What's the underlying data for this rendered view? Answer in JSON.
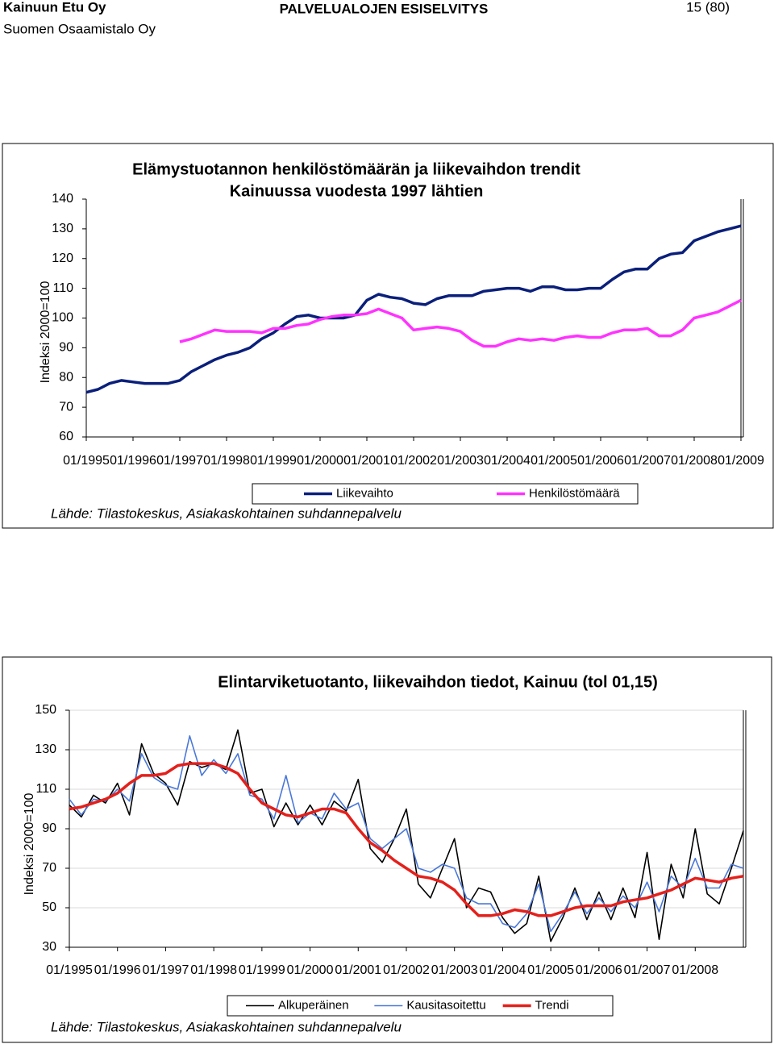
{
  "header": {
    "company": "Kainuun Etu Oy",
    "subtitle": "Suomen Osaamistalo Oy",
    "title": "PALVELUALOJEN ESISELVITYS",
    "page": "15 (80)"
  },
  "chart_data": [
    {
      "type": "line",
      "title": "Elämystuotannon henkilöstömäärän ja liikevaihdon trendit",
      "subtitle": "Kainuussa vuodesta 1997 lähtien",
      "y_label": "Indeksi 2000=100",
      "source": "Lähde: Tilastokeskus, Asiakaskohtainen suhdannepalvelu",
      "categories": [
        "01/1995",
        null,
        null,
        null,
        "01/1996",
        null,
        null,
        null,
        "01/1997",
        null,
        null,
        null,
        "01/1998",
        null,
        null,
        null,
        "01/1999",
        null,
        null,
        null,
        "01/2000",
        null,
        null,
        null,
        "01/2001",
        null,
        null,
        null,
        "01/2002",
        null,
        null,
        null,
        "01/2003",
        null,
        null,
        null,
        "01/2004",
        null,
        null,
        null,
        "01/2005",
        null,
        null,
        null,
        "01/2006",
        null,
        null,
        null,
        "01/2007",
        null,
        null,
        null,
        "01/2008",
        null,
        null,
        null,
        "01/2009"
      ],
      "ylim": [
        60,
        140
      ],
      "yticks": [
        60,
        70,
        80,
        90,
        100,
        110,
        120,
        130,
        140
      ],
      "grid": false,
      "series": [
        {
          "name": "Liikevaihto",
          "color": "#0a1f7a",
          "values": [
            75,
            76,
            78,
            79,
            78.5,
            78,
            78,
            78,
            79,
            82,
            84,
            86,
            87.5,
            88.5,
            90,
            93,
            95,
            98,
            100.5,
            101,
            100,
            100,
            100,
            101,
            106,
            108,
            107,
            106.5,
            105,
            104.5,
            106.5,
            107.5,
            107.5,
            107.5,
            109,
            109.5,
            110,
            110,
            109,
            110.5,
            110.5,
            109.5,
            109.5,
            110,
            110,
            113,
            115.5,
            116.5,
            116.5,
            120,
            121.5,
            122,
            126,
            127.5,
            129,
            130,
            131
          ]
        },
        {
          "name": "Henkilöstömäärä",
          "color": "#ff33ff",
          "values": [
            null,
            null,
            null,
            null,
            null,
            null,
            null,
            null,
            92,
            93,
            94.5,
            96,
            95.5,
            95.5,
            95.5,
            95,
            96.5,
            96.5,
            97.5,
            98,
            99.5,
            100.5,
            101,
            101,
            101.5,
            103,
            101.5,
            100,
            96,
            96.5,
            97,
            96.5,
            95.5,
            92.5,
            90.5,
            90.5,
            92,
            93,
            92.5,
            93,
            92.5,
            93.5,
            94,
            93.5,
            93.5,
            95,
            96,
            96,
            96.5,
            94,
            94,
            96,
            100,
            101,
            102,
            104,
            106
          ]
        }
      ]
    },
    {
      "type": "line",
      "title": "Elintarviketuotanto, liikevaihdon tiedot, Kainuu (tol 01,15)",
      "y_label": "Indeksi 2000=100",
      "source": "Lähde: Tilastokeskus, Asiakaskohtainen suhdannepalvelu",
      "categories": [
        "01/1995",
        null,
        null,
        null,
        "01/1996",
        null,
        null,
        null,
        "01/1997",
        null,
        null,
        null,
        "01/1998",
        null,
        null,
        null,
        "01/1999",
        null,
        null,
        null,
        "01/2000",
        null,
        null,
        null,
        "01/2001",
        null,
        null,
        null,
        "01/2002",
        null,
        null,
        null,
        "01/2003",
        null,
        null,
        null,
        "01/2004",
        null,
        null,
        null,
        "01/2005",
        null,
        null,
        null,
        "01/2006",
        null,
        null,
        null,
        "01/2007",
        null,
        null,
        null,
        "01/2008",
        null,
        null,
        null,
        null
      ],
      "ylim": [
        30,
        150
      ],
      "yticks": [
        30,
        50,
        70,
        90,
        110,
        130,
        150
      ],
      "grid": true,
      "series": [
        {
          "name": "Alkuperäinen",
          "color": "#000000",
          "values": [
            102,
            96,
            107,
            103,
            113,
            97,
            133,
            118,
            113,
            102,
            124,
            121,
            123,
            120,
            140,
            108,
            110,
            91,
            103,
            92,
            102,
            92,
            104,
            99,
            115,
            80,
            73,
            85,
            100,
            62,
            55,
            70,
            85,
            50,
            60,
            58,
            45,
            37,
            42,
            66,
            33,
            45,
            60,
            44,
            58,
            44,
            60,
            45,
            78,
            34,
            72,
            55,
            90,
            57,
            52,
            70,
            89
          ]
        },
        {
          "name": "Kausitasoitettu",
          "color": "#4a78d8",
          "values": [
            105,
            97,
            105,
            104,
            110,
            104,
            128,
            116,
            112,
            110,
            137,
            117,
            125,
            118,
            128,
            107,
            105,
            95,
            117,
            93,
            98,
            95,
            108,
            100,
            103,
            85,
            80,
            85,
            90,
            70,
            68,
            72,
            70,
            55,
            52,
            52,
            42,
            40,
            47,
            62,
            38,
            47,
            58,
            47,
            55,
            48,
            56,
            50,
            63,
            48,
            66,
            60,
            75,
            60,
            60,
            72,
            70
          ]
        },
        {
          "name": "Trendi",
          "color": "#e3201b",
          "values": [
            100,
            101,
            103,
            105,
            108,
            113,
            117,
            117,
            118,
            122,
            123,
            123,
            123,
            121,
            118,
            110,
            103,
            100,
            97,
            96,
            98,
            100,
            100,
            98,
            90,
            83,
            79,
            74,
            70,
            66,
            65,
            63,
            59,
            52,
            46,
            46,
            47,
            49,
            48,
            46,
            46,
            48,
            50,
            51,
            51,
            51,
            53,
            54,
            55,
            57,
            59,
            62,
            65,
            64,
            63,
            65,
            66
          ]
        }
      ]
    }
  ]
}
